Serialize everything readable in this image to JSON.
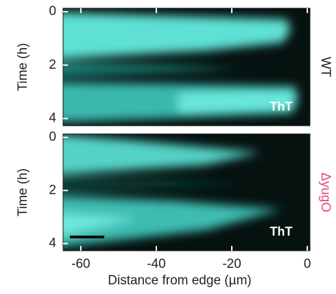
{
  "chart_data": [
    {
      "type": "image",
      "label": "WT",
      "label_color": "#1a1a1a",
      "annotation": "ThT",
      "ylabel": "Time (h)",
      "ylim": [
        -0.13,
        4.27
      ],
      "yticks": [
        0,
        2,
        4
      ],
      "xlim": [
        -64.7,
        0.7
      ],
      "xticks": [
        -60,
        -40,
        -20,
        0
      ]
    },
    {
      "type": "image",
      "label": "ΔyugO",
      "label_color": "#e8457a",
      "annotation": "ThT",
      "ylabel": "Time (h)",
      "ylim": [
        -0.13,
        4.27
      ],
      "yticks": [
        0,
        2,
        4
      ],
      "xlim": [
        -64.7,
        0.7
      ],
      "xticks": [
        -60,
        -40,
        -20,
        0
      ],
      "xlabel": "Distance from edge (µm)"
    }
  ]
}
